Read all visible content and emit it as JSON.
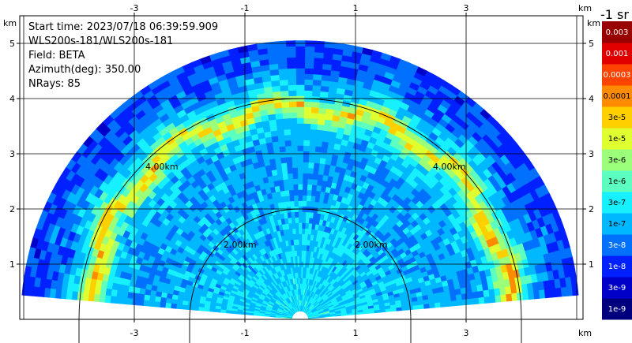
{
  "chart_data": {
    "type": "heatmap",
    "subtype": "ppi-polar-sector",
    "info_lines": [
      "Start time: 2023/07/18 06:39:59.909",
      "WLS200s-181/WLS200s-181",
      "Field: BETA",
      "Azimuth(deg): 350.00",
      "NRays: 85"
    ],
    "x_unit": "km",
    "y_unit": "km",
    "xlim": [
      -5,
      5
    ],
    "ylim": [
      0,
      5.8
    ],
    "x_ticks": [
      -3,
      -1,
      1,
      3
    ],
    "y_ticks": [
      1,
      2,
      3,
      4,
      5
    ],
    "grid": true,
    "sector_max_range_km": 5.0,
    "sector_elevation_start_deg": 5,
    "sector_elevation_end_deg": 175,
    "range_rings": [
      {
        "radius_km": 2.0,
        "label": "2.00km"
      },
      {
        "radius_km": 4.0,
        "label": "4.00km"
      }
    ],
    "colorbar": {
      "title": "-1 sr",
      "labels": [
        "1e-9",
        "3e-9",
        "1e-8",
        "3e-8",
        "1e-7",
        "3e-7",
        "1e-6",
        "3e-6",
        "1e-5",
        "3e-5",
        "0.0001",
        "0.0003",
        "0.001",
        "0.003"
      ],
      "colors": [
        "#00007f",
        "#0000c8",
        "#0020ff",
        "#0070ff",
        "#00b8ff",
        "#16f0ff",
        "#5cffbf",
        "#9cff7a",
        "#e0ff30",
        "#ffd000",
        "#ff8c00",
        "#ff4400",
        "#e00000",
        "#990000"
      ]
    },
    "profile": {
      "description_values_log10_beta": [
        {
          "range_km": 0.2,
          "value": -6.6
        },
        {
          "range_km": 1.0,
          "value": -6.7
        },
        {
          "range_km": 2.0,
          "value": -6.9
        },
        {
          "range_km": 3.0,
          "value": -7.1
        },
        {
          "range_km": 3.5,
          "value": -6.6
        },
        {
          "range_km": 3.8,
          "value": -4.6
        },
        {
          "range_km": 4.0,
          "value": -6.4
        },
        {
          "range_km": 4.5,
          "value": -7.5
        },
        {
          "range_km": 5.0,
          "value": -7.7
        }
      ]
    }
  }
}
